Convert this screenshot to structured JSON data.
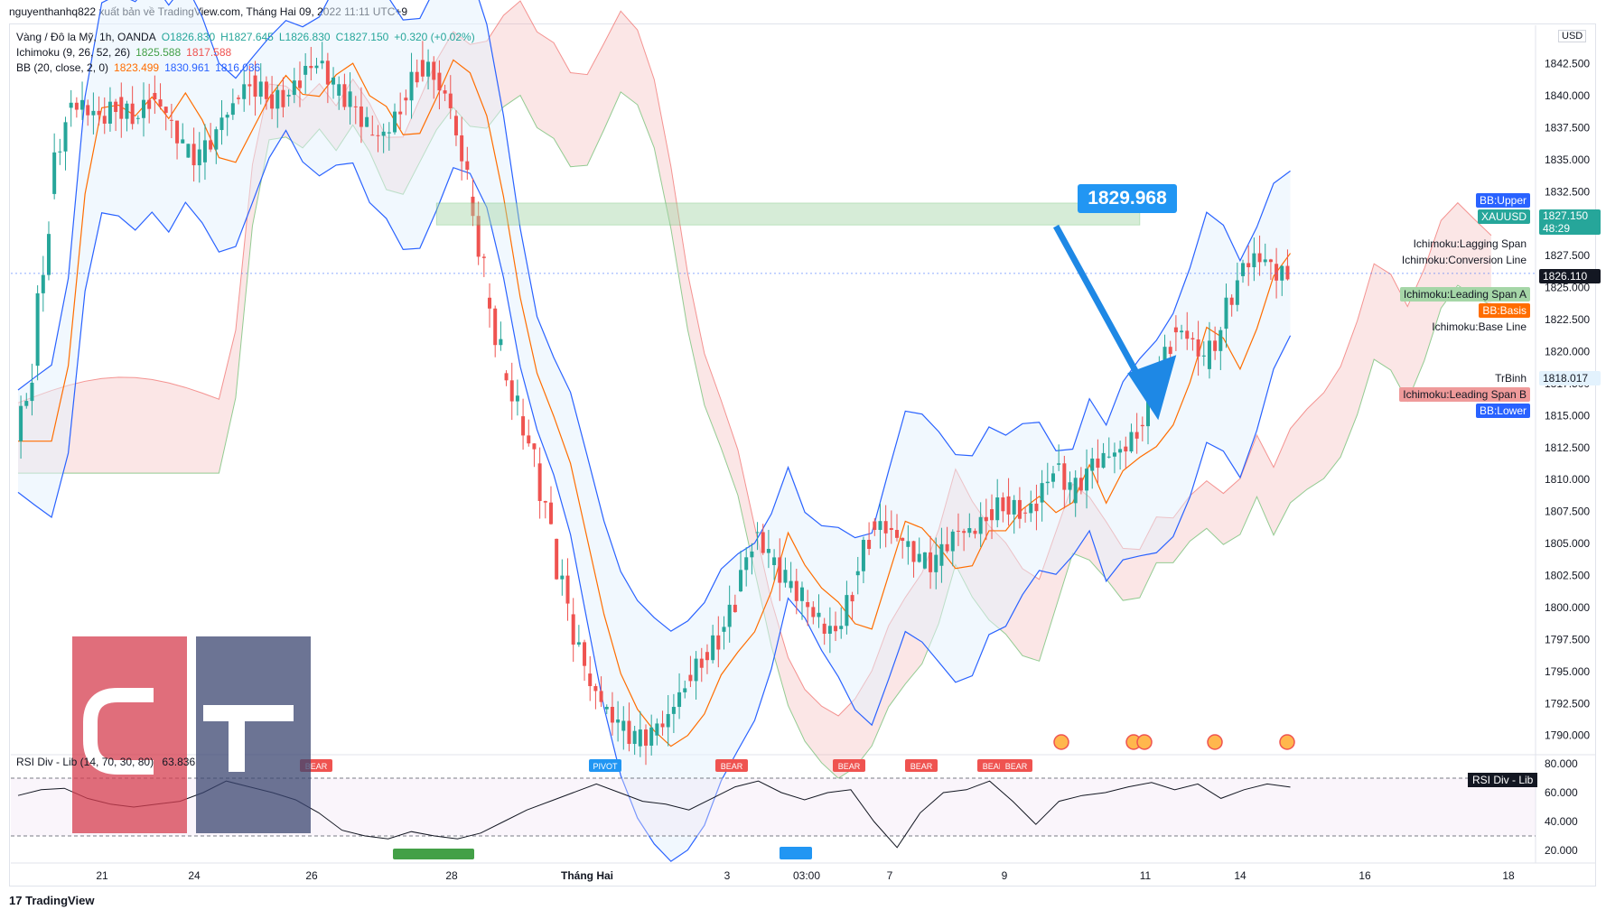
{
  "header": {
    "text": "nguyenthanhq822 xuất bản về TradingView.com, Tháng Hai 09, 2022 11:11 UTC+9"
  },
  "legend": {
    "symbol_line": "Vàng / Đô la Mỹ, 1h, OANDA",
    "open": "O1826.830",
    "high": "H1827.645",
    "low": "L1826.830",
    "close": "C1827.150",
    "change": "+0.320 (+0.02%)",
    "ichimoku_label": "Ichimoku (9, 26, 52, 26)",
    "ichimoku_v1": "1825.588",
    "ichimoku_v2": "1817.588",
    "bb_label": "BB (20, close, 2, 0)",
    "bb_basis": "1823.499",
    "bb_upper": "1830.961",
    "bb_lower": "1816.036"
  },
  "currency": "USD",
  "callout": {
    "value": "1829.968"
  },
  "right_tags": {
    "bb_upper": "BB:Upper",
    "symbol": "XAUUSD",
    "price": "1827.150",
    "countdown": "48:29",
    "lagging": "Ichimoku:Lagging Span",
    "conversion": "Ichimoku:Conversion Line",
    "crosshair_price": "1826.110",
    "leading_a": "Ichimoku:Leading Span A",
    "bb_basis": "BB:Basis",
    "base_line": "Ichimoku:Base Line",
    "trbinh": "TrBinh",
    "trbinh_price": "1818.017",
    "leading_b": "Ichimoku:Leading Span B",
    "bb_lower": "BB:Lower"
  },
  "rsi": {
    "title": "RSI Div - Lib (14, 70, 30, 80)",
    "value": "63.836",
    "tag": "RSI Div - Lib",
    "y_ticks": [
      "80.000",
      "60.000",
      "40.000",
      "20.000"
    ],
    "markers": {
      "bear": "BEAR",
      "pivot": "PIVOT"
    }
  },
  "colors": {
    "bull": "#26a69a",
    "bear": "#ef5350",
    "bb_line": "#2962ff",
    "basis": "#ff6d00",
    "leading_a_fill": "#a5d6a7",
    "leading_b_fill": "#ef9a9a",
    "zone": "#a5d6a7",
    "arrow": "#1e88e5",
    "logo_red": "#d63e4f",
    "logo_navy": "#3b4570"
  },
  "footer": {
    "brand": "TradingView"
  },
  "chart_data": {
    "type": "candlestick",
    "symbol": "XAUUSD",
    "timeframe": "1h",
    "ylim": [
      1788.5,
      1845.5
    ],
    "y_ticks": [
      "1842.500",
      "1840.000",
      "1837.500",
      "1835.000",
      "1832.500",
      "1830.000",
      "1827.500",
      "1825.000",
      "1822.500",
      "1820.000",
      "1817.500",
      "1815.000",
      "1812.500",
      "1810.000",
      "1807.500",
      "1805.000",
      "1802.500",
      "1800.000",
      "1797.500",
      "1795.000",
      "1792.500",
      "1790.000"
    ],
    "x_ticks": [
      "21",
      "24",
      "26",
      "28",
      "Tháng Hai",
      "3",
      "03:00",
      "7",
      "9",
      "11",
      "14",
      "16",
      "18"
    ],
    "price_path": [
      [
        0,
        1813
      ],
      [
        1,
        1820
      ],
      [
        2,
        1838
      ],
      [
        3,
        1840
      ],
      [
        4,
        1838
      ],
      [
        5,
        1840
      ],
      [
        6,
        1838
      ],
      [
        7,
        1841
      ],
      [
        8,
        1836
      ],
      [
        9,
        1834
      ],
      [
        10,
        1837
      ],
      [
        11,
        1840
      ],
      [
        12,
        1842
      ],
      [
        13,
        1839
      ],
      [
        14,
        1841
      ],
      [
        15,
        1843
      ],
      [
        16,
        1840
      ],
      [
        17,
        1839
      ],
      [
        18,
        1836
      ],
      [
        19,
        1838
      ],
      [
        20,
        1843
      ],
      [
        21,
        1842
      ],
      [
        22,
        1838
      ],
      [
        23,
        1830
      ],
      [
        24,
        1820
      ],
      [
        25,
        1816
      ],
      [
        26,
        1812
      ],
      [
        27,
        1805
      ],
      [
        28,
        1798
      ],
      [
        29,
        1793
      ],
      [
        30,
        1791
      ],
      [
        31,
        1789
      ],
      [
        32,
        1790
      ],
      [
        33,
        1792
      ],
      [
        34,
        1796
      ],
      [
        35,
        1797
      ],
      [
        36,
        1800
      ],
      [
        37,
        1806
      ],
      [
        38,
        1803
      ],
      [
        39,
        1801
      ],
      [
        40,
        1800
      ],
      [
        41,
        1797
      ],
      [
        42,
        1802
      ],
      [
        43,
        1807
      ],
      [
        44,
        1806
      ],
      [
        45,
        1804
      ],
      [
        46,
        1802
      ],
      [
        47,
        1806
      ],
      [
        48,
        1806
      ],
      [
        49,
        1808
      ],
      [
        50,
        1809
      ],
      [
        51,
        1806
      ],
      [
        52,
        1812
      ],
      [
        53,
        1808
      ],
      [
        54,
        1811
      ],
      [
        55,
        1812
      ],
      [
        56,
        1813
      ],
      [
        57,
        1816
      ],
      [
        58,
        1822
      ],
      [
        59,
        1821
      ],
      [
        60,
        1818
      ],
      [
        61,
        1824
      ],
      [
        62,
        1828
      ],
      [
        63,
        1827
      ],
      [
        64,
        1826.1
      ]
    ],
    "resistance_zone": [
      1829.9,
      1831.6
    ],
    "crosshair_price": 1826.11,
    "last_price": 1827.15,
    "trbinh_price": 1818.017,
    "target_label": "1829.968",
    "rsi_ylim": [
      15,
      85
    ],
    "rsi_path": [
      [
        0,
        58
      ],
      [
        1,
        62
      ],
      [
        2,
        63
      ],
      [
        3,
        56
      ],
      [
        4,
        52
      ],
      [
        5,
        50
      ],
      [
        6,
        52
      ],
      [
        7,
        54
      ],
      [
        8,
        60
      ],
      [
        9,
        68
      ],
      [
        10,
        64
      ],
      [
        11,
        60
      ],
      [
        12,
        55
      ],
      [
        13,
        46
      ],
      [
        14,
        34
      ],
      [
        15,
        30
      ],
      [
        16,
        28
      ],
      [
        17,
        33
      ],
      [
        18,
        30
      ],
      [
        19,
        28
      ],
      [
        20,
        32
      ],
      [
        21,
        40
      ],
      [
        22,
        48
      ],
      [
        23,
        54
      ],
      [
        24,
        60
      ],
      [
        25,
        66
      ],
      [
        26,
        60
      ],
      [
        27,
        54
      ],
      [
        28,
        52
      ],
      [
        29,
        48
      ],
      [
        30,
        56
      ],
      [
        31,
        64
      ],
      [
        32,
        68
      ],
      [
        33,
        60
      ],
      [
        34,
        55
      ],
      [
        35,
        60
      ],
      [
        36,
        62
      ],
      [
        37,
        40
      ],
      [
        38,
        22
      ],
      [
        39,
        46
      ],
      [
        40,
        60
      ],
      [
        41,
        62
      ],
      [
        42,
        68
      ],
      [
        43,
        54
      ],
      [
        44,
        38
      ],
      [
        45,
        54
      ],
      [
        46,
        58
      ],
      [
        47,
        60
      ],
      [
        48,
        64
      ],
      [
        49,
        67
      ],
      [
        50,
        62
      ],
      [
        51,
        66
      ],
      [
        52,
        56
      ],
      [
        53,
        62
      ],
      [
        54,
        66
      ],
      [
        55,
        63.8
      ]
    ],
    "rsi_levels": [
      70,
      30
    ]
  }
}
